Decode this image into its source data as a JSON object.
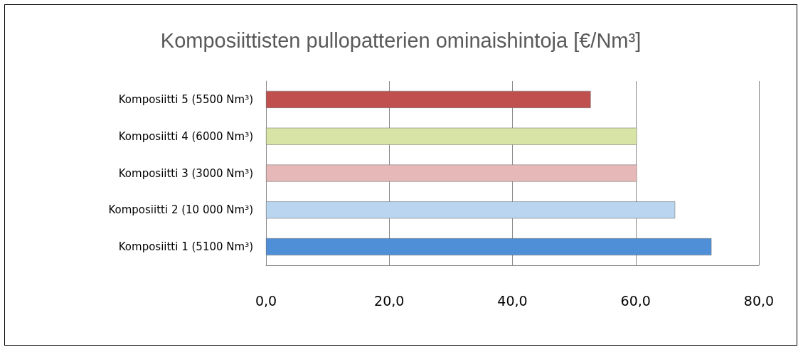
{
  "chart_data": {
    "type": "bar",
    "orientation": "horizontal",
    "title": "Komposiittisten pullopatterien ominaishintoja [€/Nm³]",
    "categories": [
      "Komposiitti 5 (5500 Nm³)",
      "Komposiitti 4 (6000 Nm³)",
      "Komposiitti 3 (3000 Nm³)",
      "Komposiitti 2 (10 000 Nm³)",
      "Komposiitti 1 (5100 Nm³)"
    ],
    "values": [
      52.7,
      60.2,
      60.2,
      66.4,
      72.3
    ],
    "colors": [
      "#c0504d",
      "#d7e4a5",
      "#e6b9b8",
      "#b9d5f0",
      "#4f8fd8"
    ],
    "xlim": [
      0,
      80
    ],
    "xticks": [
      {
        "value": 0,
        "label": "0,0"
      },
      {
        "value": 20,
        "label": "20,0"
      },
      {
        "value": 40,
        "label": "40,0"
      },
      {
        "value": 60,
        "label": "60,0"
      },
      {
        "value": 80,
        "label": "80,0"
      }
    ],
    "grid": "x"
  }
}
